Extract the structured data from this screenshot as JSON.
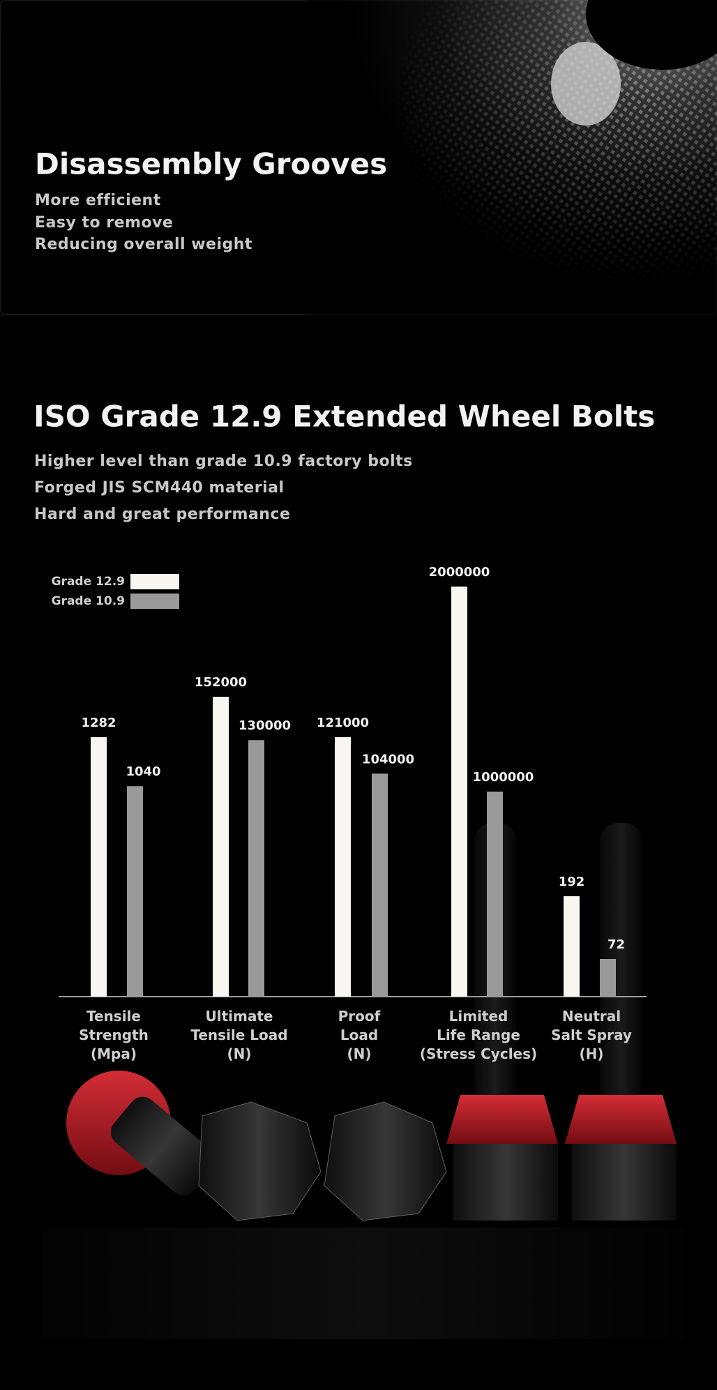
{
  "header": {
    "title": "Disassembly Grooves",
    "lines": [
      "More efficient",
      "Easy to remove",
      "Reducing overall weight"
    ]
  },
  "intro": {
    "title": "ISO Grade 12.9 Extended Wheel Bolts",
    "lines": [
      "Higher level than grade 10.9 factory bolts",
      "Forged JIS SCM440 material",
      "Hard and great performance"
    ]
  },
  "chart_data": {
    "type": "bar",
    "categories": [
      "Tensile\nStrength\n(Mpa)",
      "Ultimate\nTensile Load\n(N)",
      "Proof\nLoad\n(N)",
      "Limited\nLife Range\n(Stress Cycles)",
      "Neutral\nSalt Spray\n(H)"
    ],
    "series": [
      {
        "name": "Grade 12.9",
        "color": "#f8f6f0",
        "values": [
          1282,
          152000,
          121000,
          2000000,
          192
        ]
      },
      {
        "name": "Grade 10.9",
        "color": "#9a9a9a",
        "values": [
          1040,
          130000,
          104000,
          1000000,
          72
        ]
      }
    ],
    "legend": "upper left"
  }
}
